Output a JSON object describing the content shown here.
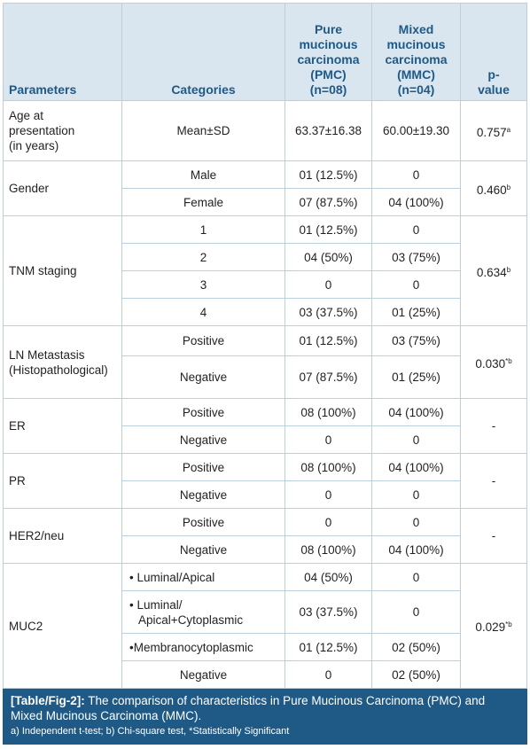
{
  "headers": {
    "parameters": "Parameters",
    "categories": "Categories",
    "pmc_line1": "Pure",
    "pmc_line2": "mucinous",
    "pmc_line3": "carcinoma",
    "pmc_line4": "(PMC)",
    "pmc_line5": "(n=08)",
    "mmc_line1": "Mixed",
    "mmc_line2": "mucinous",
    "mmc_line3": "carcinoma",
    "mmc_line4": "(MMC)",
    "mmc_line5": "(n=04)",
    "pvalue_line1": "p-",
    "pvalue_line2": "value"
  },
  "age": {
    "param_line1": "Age at",
    "param_line2": "presentation",
    "param_line3": "(in years)",
    "category": "Mean±SD",
    "pmc": "63.37±16.38",
    "mmc": "60.00±19.30",
    "p": "0.757",
    "p_sup": "a"
  },
  "gender": {
    "param": "Gender",
    "rows": [
      {
        "category": "Male",
        "pmc": "01 (12.5%)",
        "mmc": "0"
      },
      {
        "category": "Female",
        "pmc": "07 (87.5%)",
        "mmc": "04 (100%)"
      }
    ],
    "p": "0.460",
    "p_sup": "b"
  },
  "tnm": {
    "param": "TNM staging",
    "rows": [
      {
        "category": "1",
        "pmc": "01 (12.5%)",
        "mmc": "0"
      },
      {
        "category": "2",
        "pmc": "04 (50%)",
        "mmc": "03 (75%)"
      },
      {
        "category": "3",
        "pmc": "0",
        "mmc": "0"
      },
      {
        "category": "4",
        "pmc": "03 (37.5%)",
        "mmc": "01 (25%)"
      }
    ],
    "p": "0.634",
    "p_sup": "b"
  },
  "ln": {
    "param_line1": "LN Metastasis",
    "param_line2": "(Histopathological)",
    "rows": [
      {
        "category": "Positive",
        "pmc": "01 (12.5%)",
        "mmc": "03 (75%)"
      },
      {
        "category": "Negative",
        "pmc": "07 (87.5%)",
        "mmc": "01 (25%)"
      }
    ],
    "p": "0.030",
    "p_sup": "*b"
  },
  "er": {
    "param": "ER",
    "rows": [
      {
        "category": "Positive",
        "pmc": "08 (100%)",
        "mmc": "04 (100%)"
      },
      {
        "category": "Negative",
        "pmc": "0",
        "mmc": "0"
      }
    ],
    "p": "-"
  },
  "pr": {
    "param": "PR",
    "rows": [
      {
        "category": "Positive",
        "pmc": "08 (100%)",
        "mmc": "04 (100%)"
      },
      {
        "category": "Negative",
        "pmc": "0",
        "mmc": "0"
      }
    ],
    "p": "-"
  },
  "her2": {
    "param": "HER2/neu",
    "rows": [
      {
        "category": "Positive",
        "pmc": "0",
        "mmc": "0"
      },
      {
        "category": "Negative",
        "pmc": "08 (100%)",
        "mmc": "04 (100%)"
      }
    ],
    "p": "-"
  },
  "muc2": {
    "param": "MUC2",
    "bullet": "•",
    "rows": [
      {
        "category": "Luminal/Apical",
        "pmc": "04 (50%)",
        "mmc": "0"
      },
      {
        "category_line1": "Luminal/",
        "category_line2": "Apical+Cytoplasmic",
        "pmc": "03 (37.5%)",
        "mmc": "0"
      },
      {
        "category": "Membranocytoplasmic",
        "pmc": "01 (12.5%)",
        "mmc": "02 (50%)"
      },
      {
        "category": "Negative",
        "pmc": "0",
        "mmc": "02 (50%)"
      }
    ],
    "p": "0.029",
    "p_sup": "*b"
  },
  "caption": {
    "label": "[Table/Fig-2]:",
    "text": " The comparison of characteristics in Pure Mucinous Carcinoma (PMC) and Mixed Mucinous Carcinoma (MMC).",
    "note": "a) Independent t-test; b) Chi-square test, *Statistically Significant"
  }
}
